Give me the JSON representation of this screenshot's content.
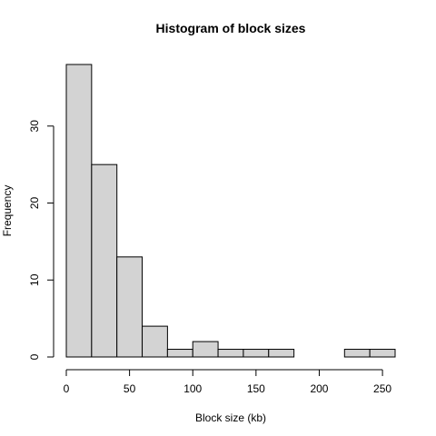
{
  "chart_data": {
    "type": "bar",
    "title": "Histogram of block sizes",
    "xlabel": "Block size (kb)",
    "ylabel": "Frequency",
    "bins": [
      {
        "start": 0,
        "end": 20,
        "count": 38
      },
      {
        "start": 20,
        "end": 40,
        "count": 25
      },
      {
        "start": 40,
        "end": 60,
        "count": 13
      },
      {
        "start": 60,
        "end": 80,
        "count": 4
      },
      {
        "start": 80,
        "end": 100,
        "count": 1
      },
      {
        "start": 100,
        "end": 120,
        "count": 2
      },
      {
        "start": 120,
        "end": 140,
        "count": 1
      },
      {
        "start": 140,
        "end": 160,
        "count": 1
      },
      {
        "start": 160,
        "end": 180,
        "count": 1
      },
      {
        "start": 180,
        "end": 200,
        "count": 0
      },
      {
        "start": 200,
        "end": 220,
        "count": 0
      },
      {
        "start": 220,
        "end": 240,
        "count": 1
      },
      {
        "start": 240,
        "end": 260,
        "count": 1
      }
    ],
    "xlim": [
      0,
      260
    ],
    "ylim": [
      0,
      38
    ],
    "x_ticks": [
      0,
      50,
      100,
      150,
      200,
      250
    ],
    "y_ticks": [
      0,
      10,
      20,
      30
    ],
    "x_tick_labels": [
      "0",
      "50",
      "100",
      "150",
      "200",
      "250"
    ],
    "y_tick_labels": [
      "0",
      "10",
      "20",
      "30"
    ],
    "bar_fill": "#d3d3d3",
    "bar_stroke": "#000000",
    "grid": false,
    "legend": "none"
  }
}
